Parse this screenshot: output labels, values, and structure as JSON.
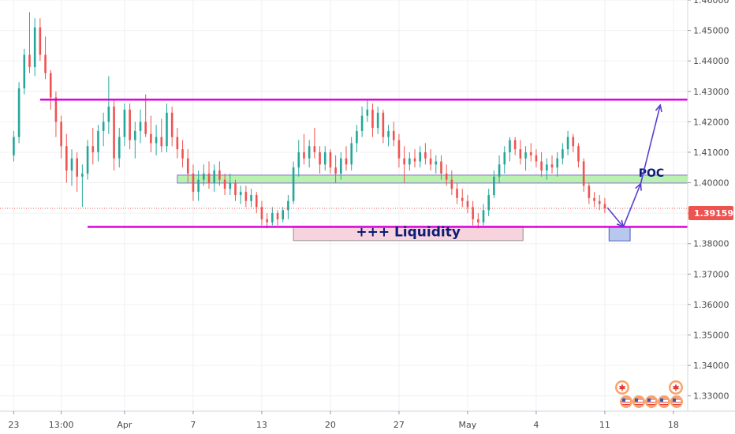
{
  "chart_data": {
    "type": "candlestick",
    "price_axis": {
      "ylim": [
        1.325,
        1.46
      ],
      "ticks": [
        "1.46000",
        "1.45000",
        "1.44000",
        "1.43000",
        "1.42000",
        "1.41000",
        "1.40000",
        "1.39000",
        "1.38000",
        "1.37000",
        "1.36000",
        "1.35000",
        "1.34000",
        "1.33000"
      ],
      "current_price": "1.39159",
      "current_price_value": 1.39159
    },
    "time_axis": {
      "labels": [
        "23",
        "13:00",
        "Apr",
        "7",
        "13",
        "20",
        "27",
        "May",
        "4",
        "11",
        "18"
      ],
      "label_index": [
        0,
        9,
        21,
        34,
        47,
        60,
        73,
        86,
        99,
        112,
        125
      ],
      "index_range": [
        -2.6,
        127.7
      ]
    },
    "levels": {
      "top_resistance": 1.4273,
      "liquidity_line": 1.3855
    },
    "zones": {
      "poc": {
        "label": "POC",
        "x": [
          31,
          128
        ],
        "y": [
          1.3999,
          1.4025
        ]
      },
      "liquidity": {
        "label": "+++ Liquidity",
        "x": [
          53,
          96.5
        ],
        "y": [
          1.381,
          1.3857
        ]
      },
      "target": {
        "x": [
          112.8,
          116.8
        ],
        "y": [
          1.3809,
          1.3854
        ]
      }
    },
    "projection": [
      [
        112.5,
        1.3918
      ],
      [
        115.5,
        1.3855
      ],
      [
        118.8,
        1.3997
      ],
      [
        122.5,
        1.4255
      ]
    ],
    "candles": [
      {
        "o": 1.409,
        "h": 1.417,
        "l": 1.407,
        "c": 1.415
      },
      {
        "o": 1.415,
        "h": 1.433,
        "l": 1.413,
        "c": 1.431
      },
      {
        "o": 1.431,
        "h": 1.444,
        "l": 1.429,
        "c": 1.442
      },
      {
        "o": 1.442,
        "h": 1.456,
        "l": 1.436,
        "c": 1.438
      },
      {
        "o": 1.438,
        "h": 1.454,
        "l": 1.435,
        "c": 1.451
      },
      {
        "o": 1.451,
        "h": 1.454,
        "l": 1.44,
        "c": 1.442
      },
      {
        "o": 1.442,
        "h": 1.448,
        "l": 1.434,
        "c": 1.436
      },
      {
        "o": 1.436,
        "h": 1.437,
        "l": 1.424,
        "c": 1.428
      },
      {
        "o": 1.428,
        "h": 1.43,
        "l": 1.415,
        "c": 1.42
      },
      {
        "o": 1.42,
        "h": 1.422,
        "l": 1.408,
        "c": 1.412
      },
      {
        "o": 1.412,
        "h": 1.416,
        "l": 1.4,
        "c": 1.404
      },
      {
        "o": 1.404,
        "h": 1.411,
        "l": 1.399,
        "c": 1.408
      },
      {
        "o": 1.408,
        "h": 1.41,
        "l": 1.397,
        "c": 1.402
      },
      {
        "o": 1.402,
        "h": 1.406,
        "l": 1.392,
        "c": 1.403
      },
      {
        "o": 1.403,
        "h": 1.414,
        "l": 1.401,
        "c": 1.412
      },
      {
        "o": 1.412,
        "h": 1.418,
        "l": 1.406,
        "c": 1.41
      },
      {
        "o": 1.41,
        "h": 1.419,
        "l": 1.407,
        "c": 1.417
      },
      {
        "o": 1.417,
        "h": 1.423,
        "l": 1.412,
        "c": 1.42
      },
      {
        "o": 1.42,
        "h": 1.435,
        "l": 1.416,
        "c": 1.425
      },
      {
        "o": 1.425,
        "h": 1.427,
        "l": 1.404,
        "c": 1.408
      },
      {
        "o": 1.408,
        "h": 1.418,
        "l": 1.405,
        "c": 1.415
      },
      {
        "o": 1.415,
        "h": 1.426,
        "l": 1.412,
        "c": 1.424
      },
      {
        "o": 1.424,
        "h": 1.426,
        "l": 1.411,
        "c": 1.414
      },
      {
        "o": 1.414,
        "h": 1.42,
        "l": 1.408,
        "c": 1.417
      },
      {
        "o": 1.417,
        "h": 1.424,
        "l": 1.413,
        "c": 1.42
      },
      {
        "o": 1.42,
        "h": 1.429,
        "l": 1.415,
        "c": 1.416
      },
      {
        "o": 1.416,
        "h": 1.422,
        "l": 1.41,
        "c": 1.413
      },
      {
        "o": 1.413,
        "h": 1.419,
        "l": 1.409,
        "c": 1.415
      },
      {
        "o": 1.415,
        "h": 1.421,
        "l": 1.41,
        "c": 1.412
      },
      {
        "o": 1.412,
        "h": 1.426,
        "l": 1.41,
        "c": 1.423
      },
      {
        "o": 1.423,
        "h": 1.425,
        "l": 1.412,
        "c": 1.415
      },
      {
        "o": 1.415,
        "h": 1.418,
        "l": 1.408,
        "c": 1.411
      },
      {
        "o": 1.411,
        "h": 1.414,
        "l": 1.405,
        "c": 1.408
      },
      {
        "o": 1.408,
        "h": 1.411,
        "l": 1.4,
        "c": 1.403
      },
      {
        "o": 1.403,
        "h": 1.406,
        "l": 1.394,
        "c": 1.397
      },
      {
        "o": 1.397,
        "h": 1.404,
        "l": 1.394,
        "c": 1.401
      },
      {
        "o": 1.401,
        "h": 1.406,
        "l": 1.399,
        "c": 1.403
      },
      {
        "o": 1.403,
        "h": 1.407,
        "l": 1.398,
        "c": 1.4
      },
      {
        "o": 1.4,
        "h": 1.406,
        "l": 1.397,
        "c": 1.404
      },
      {
        "o": 1.404,
        "h": 1.407,
        "l": 1.399,
        "c": 1.401
      },
      {
        "o": 1.401,
        "h": 1.403,
        "l": 1.396,
        "c": 1.398
      },
      {
        "o": 1.398,
        "h": 1.403,
        "l": 1.396,
        "c": 1.4
      },
      {
        "o": 1.4,
        "h": 1.401,
        "l": 1.394,
        "c": 1.396
      },
      {
        "o": 1.396,
        "h": 1.399,
        "l": 1.393,
        "c": 1.397
      },
      {
        "o": 1.397,
        "h": 1.399,
        "l": 1.392,
        "c": 1.394
      },
      {
        "o": 1.394,
        "h": 1.398,
        "l": 1.392,
        "c": 1.396
      },
      {
        "o": 1.396,
        "h": 1.397,
        "l": 1.39,
        "c": 1.392
      },
      {
        "o": 1.392,
        "h": 1.394,
        "l": 1.386,
        "c": 1.388
      },
      {
        "o": 1.388,
        "h": 1.39,
        "l": 1.385,
        "c": 1.387
      },
      {
        "o": 1.387,
        "h": 1.392,
        "l": 1.386,
        "c": 1.39
      },
      {
        "o": 1.39,
        "h": 1.391,
        "l": 1.386,
        "c": 1.388
      },
      {
        "o": 1.388,
        "h": 1.392,
        "l": 1.387,
        "c": 1.391
      },
      {
        "o": 1.391,
        "h": 1.396,
        "l": 1.388,
        "c": 1.394
      },
      {
        "o": 1.394,
        "h": 1.407,
        "l": 1.393,
        "c": 1.405
      },
      {
        "o": 1.405,
        "h": 1.414,
        "l": 1.402,
        "c": 1.41
      },
      {
        "o": 1.41,
        "h": 1.416,
        "l": 1.406,
        "c": 1.408
      },
      {
        "o": 1.408,
        "h": 1.414,
        "l": 1.405,
        "c": 1.412
      },
      {
        "o": 1.412,
        "h": 1.418,
        "l": 1.408,
        "c": 1.41
      },
      {
        "o": 1.41,
        "h": 1.412,
        "l": 1.403,
        "c": 1.406
      },
      {
        "o": 1.406,
        "h": 1.412,
        "l": 1.404,
        "c": 1.41
      },
      {
        "o": 1.41,
        "h": 1.411,
        "l": 1.403,
        "c": 1.405
      },
      {
        "o": 1.405,
        "h": 1.409,
        "l": 1.4,
        "c": 1.403
      },
      {
        "o": 1.403,
        "h": 1.41,
        "l": 1.401,
        "c": 1.408
      },
      {
        "o": 1.408,
        "h": 1.412,
        "l": 1.404,
        "c": 1.406
      },
      {
        "o": 1.406,
        "h": 1.415,
        "l": 1.404,
        "c": 1.413
      },
      {
        "o": 1.413,
        "h": 1.419,
        "l": 1.41,
        "c": 1.417
      },
      {
        "o": 1.417,
        "h": 1.425,
        "l": 1.415,
        "c": 1.422
      },
      {
        "o": 1.422,
        "h": 1.427,
        "l": 1.42,
        "c": 1.424
      },
      {
        "o": 1.424,
        "h": 1.426,
        "l": 1.415,
        "c": 1.418
      },
      {
        "o": 1.418,
        "h": 1.425,
        "l": 1.416,
        "c": 1.423
      },
      {
        "o": 1.423,
        "h": 1.424,
        "l": 1.413,
        "c": 1.415
      },
      {
        "o": 1.415,
        "h": 1.419,
        "l": 1.412,
        "c": 1.417
      },
      {
        "o": 1.417,
        "h": 1.42,
        "l": 1.412,
        "c": 1.414
      },
      {
        "o": 1.414,
        "h": 1.416,
        "l": 1.405,
        "c": 1.408
      },
      {
        "o": 1.408,
        "h": 1.412,
        "l": 1.4,
        "c": 1.406
      },
      {
        "o": 1.406,
        "h": 1.41,
        "l": 1.404,
        "c": 1.408
      },
      {
        "o": 1.408,
        "h": 1.411,
        "l": 1.405,
        "c": 1.407
      },
      {
        "o": 1.407,
        "h": 1.412,
        "l": 1.405,
        "c": 1.41
      },
      {
        "o": 1.41,
        "h": 1.413,
        "l": 1.406,
        "c": 1.408
      },
      {
        "o": 1.408,
        "h": 1.411,
        "l": 1.404,
        "c": 1.406
      },
      {
        "o": 1.406,
        "h": 1.409,
        "l": 1.403,
        "c": 1.407
      },
      {
        "o": 1.407,
        "h": 1.409,
        "l": 1.401,
        "c": 1.403
      },
      {
        "o": 1.403,
        "h": 1.406,
        "l": 1.399,
        "c": 1.401
      },
      {
        "o": 1.401,
        "h": 1.404,
        "l": 1.396,
        "c": 1.398
      },
      {
        "o": 1.398,
        "h": 1.4,
        "l": 1.393,
        "c": 1.395
      },
      {
        "o": 1.395,
        "h": 1.398,
        "l": 1.392,
        "c": 1.394
      },
      {
        "o": 1.394,
        "h": 1.396,
        "l": 1.39,
        "c": 1.392
      },
      {
        "o": 1.392,
        "h": 1.394,
        "l": 1.386,
        "c": 1.388
      },
      {
        "o": 1.388,
        "h": 1.39,
        "l": 1.385,
        "c": 1.387
      },
      {
        "o": 1.387,
        "h": 1.393,
        "l": 1.386,
        "c": 1.391
      },
      {
        "o": 1.391,
        "h": 1.398,
        "l": 1.389,
        "c": 1.396
      },
      {
        "o": 1.396,
        "h": 1.404,
        "l": 1.395,
        "c": 1.402
      },
      {
        "o": 1.402,
        "h": 1.409,
        "l": 1.4,
        "c": 1.406
      },
      {
        "o": 1.406,
        "h": 1.412,
        "l": 1.403,
        "c": 1.41
      },
      {
        "o": 1.41,
        "h": 1.415,
        "l": 1.407,
        "c": 1.414
      },
      {
        "o": 1.414,
        "h": 1.415,
        "l": 1.409,
        "c": 1.411
      },
      {
        "o": 1.411,
        "h": 1.414,
        "l": 1.406,
        "c": 1.408
      },
      {
        "o": 1.408,
        "h": 1.412,
        "l": 1.404,
        "c": 1.41
      },
      {
        "o": 1.41,
        "h": 1.413,
        "l": 1.407,
        "c": 1.409
      },
      {
        "o": 1.409,
        "h": 1.411,
        "l": 1.405,
        "c": 1.407
      },
      {
        "o": 1.407,
        "h": 1.41,
        "l": 1.402,
        "c": 1.404
      },
      {
        "o": 1.404,
        "h": 1.408,
        "l": 1.401,
        "c": 1.406
      },
      {
        "o": 1.406,
        "h": 1.409,
        "l": 1.403,
        "c": 1.405
      },
      {
        "o": 1.405,
        "h": 1.41,
        "l": 1.402,
        "c": 1.408
      },
      {
        "o": 1.408,
        "h": 1.413,
        "l": 1.406,
        "c": 1.411
      },
      {
        "o": 1.411,
        "h": 1.417,
        "l": 1.409,
        "c": 1.415
      },
      {
        "o": 1.415,
        "h": 1.416,
        "l": 1.41,
        "c": 1.412
      },
      {
        "o": 1.412,
        "h": 1.413,
        "l": 1.405,
        "c": 1.407
      },
      {
        "o": 1.407,
        "h": 1.408,
        "l": 1.397,
        "c": 1.399
      },
      {
        "o": 1.399,
        "h": 1.4,
        "l": 1.393,
        "c": 1.395
      },
      {
        "o": 1.395,
        "h": 1.397,
        "l": 1.392,
        "c": 1.394
      },
      {
        "o": 1.394,
        "h": 1.396,
        "l": 1.391,
        "c": 1.393
      },
      {
        "o": 1.393,
        "h": 1.395,
        "l": 1.39,
        "c": 1.3916
      }
    ],
    "colors": {
      "up": "#26a69a",
      "down": "#ef5350",
      "levels": "#e100e1",
      "poc_fill": "#b9f2b0",
      "poc_border": "#8a6fd0",
      "liquidity_fill": "#f7d3dd",
      "liquidity_border": "#8d8d8d",
      "target_fill": "#b7c7ee",
      "target_border": "#4a5fbf",
      "arrows": "#5a3fcf",
      "label_text": "#0b1d78",
      "price_badge": "#ef5350"
    },
    "grid": true
  }
}
